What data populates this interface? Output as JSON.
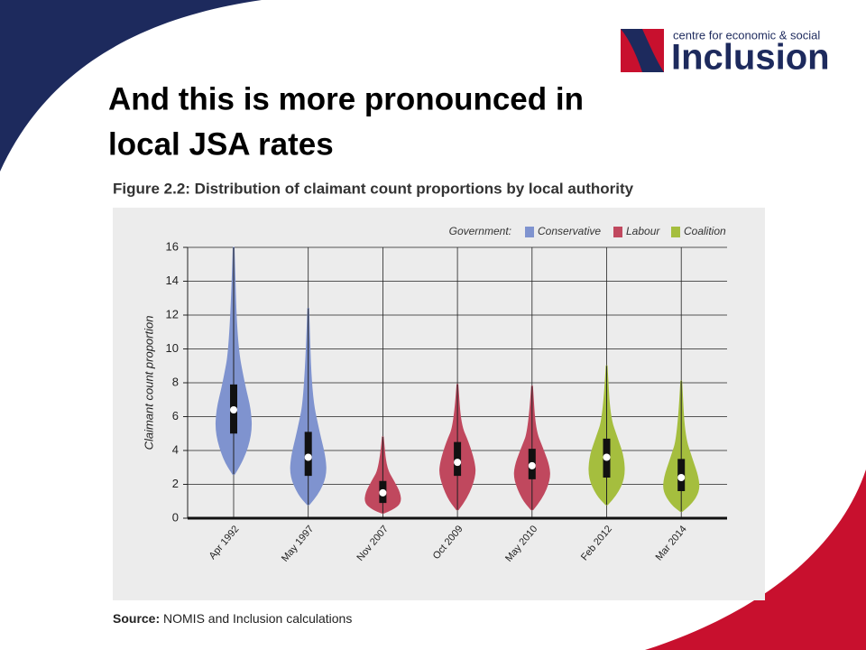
{
  "slide": {
    "heading": [
      "And this is more pronounced in",
      "local JSA rates"
    ],
    "logo": {
      "tagline": "centre for economic & social",
      "name": "Inclusion"
    }
  },
  "chart_data": {
    "type": "violin",
    "title": "Figure 2.2: Distribution of claimant count proportions by local authority",
    "y_label": "Claimant count proportion",
    "legend_title": "Government:",
    "source": {
      "label": "Source:",
      "text": "NOMIS and Inclusion calculations"
    },
    "ylim": [
      0,
      16
    ],
    "yticks": [
      0,
      2,
      4,
      6,
      8,
      10,
      12,
      14,
      16
    ],
    "grid": true,
    "series": [
      {
        "name": "Conservative",
        "color": "#7f93cf",
        "categories": [
          "Apr 1992",
          "May 1997"
        ],
        "min": [
          2.6,
          0.8
        ],
        "q1": [
          5.0,
          2.5
        ],
        "median": [
          6.4,
          3.6
        ],
        "q3": [
          7.9,
          5.1
        ],
        "max": [
          16,
          12.4
        ]
      },
      {
        "name": "Labour",
        "color": "#c0485e",
        "categories": [
          "Nov 2007",
          "Oct 2009",
          "May 2010"
        ],
        "min": [
          0.3,
          0.5,
          0.5
        ],
        "q1": [
          0.9,
          2.5,
          2.3
        ],
        "median": [
          1.5,
          3.3,
          3.1
        ],
        "q3": [
          2.2,
          4.5,
          4.1
        ],
        "max": [
          4.8,
          7.9,
          7.8
        ]
      },
      {
        "name": "Coalition",
        "color": "#a5be3e",
        "categories": [
          "Feb 2012",
          "Mar 2014"
        ],
        "min": [
          0.8,
          0.4
        ],
        "q1": [
          2.4,
          1.6
        ],
        "median": [
          3.6,
          2.4
        ],
        "q3": [
          4.7,
          3.5
        ],
        "max": [
          9,
          8.1
        ]
      }
    ]
  }
}
